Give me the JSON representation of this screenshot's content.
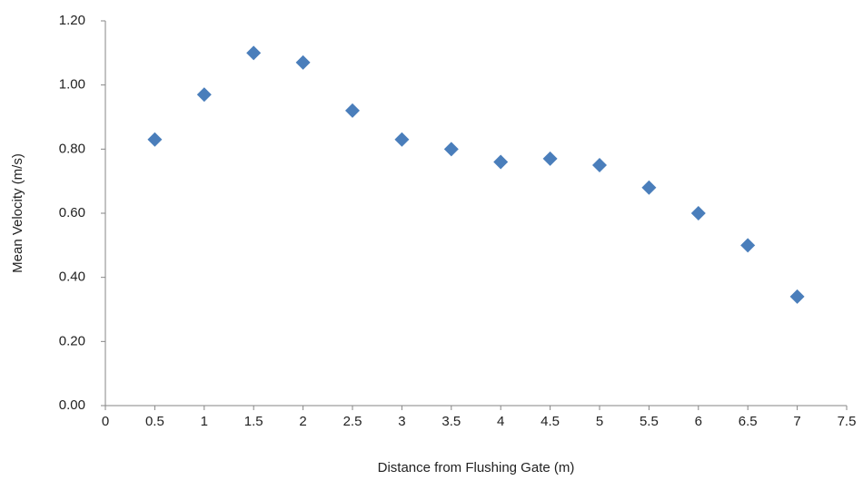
{
  "chart_data": {
    "type": "scatter",
    "x_label": "Distance from Flushing Gate (m)",
    "y_label": "Mean Velocity (m/s)",
    "series": [
      {
        "color": "#4a7ebb",
        "x": [
          0.5,
          1,
          1.5,
          2,
          2.5,
          3,
          3.5,
          4,
          4.5,
          5,
          5.5,
          6,
          6.5,
          7
        ],
        "values": [
          0.83,
          0.97,
          1.1,
          1.07,
          0.92,
          0.83,
          0.8,
          0.76,
          0.77,
          0.75,
          0.68,
          0.6,
          0.5,
          0.34
        ]
      }
    ],
    "xlim": [
      0,
      7.5
    ],
    "xticks": [
      0,
      0.5,
      1,
      1.5,
      2,
      2.5,
      3,
      3.5,
      4,
      4.5,
      5,
      5.5,
      6,
      6.5,
      7,
      7.5
    ],
    "ylim": [
      0,
      1.2
    ],
    "yticks": [
      {
        "value": 0,
        "label": "0.00"
      },
      {
        "value": 0.2,
        "label": "0.20"
      },
      {
        "value": 0.4,
        "label": "0.40"
      },
      {
        "value": 0.6,
        "label": "0.60"
      },
      {
        "value": 0.8,
        "label": "0.80"
      },
      {
        "value": 1.0,
        "label": "1.00"
      },
      {
        "value": 1.2,
        "label": "1.20"
      }
    ],
    "grid": false
  }
}
